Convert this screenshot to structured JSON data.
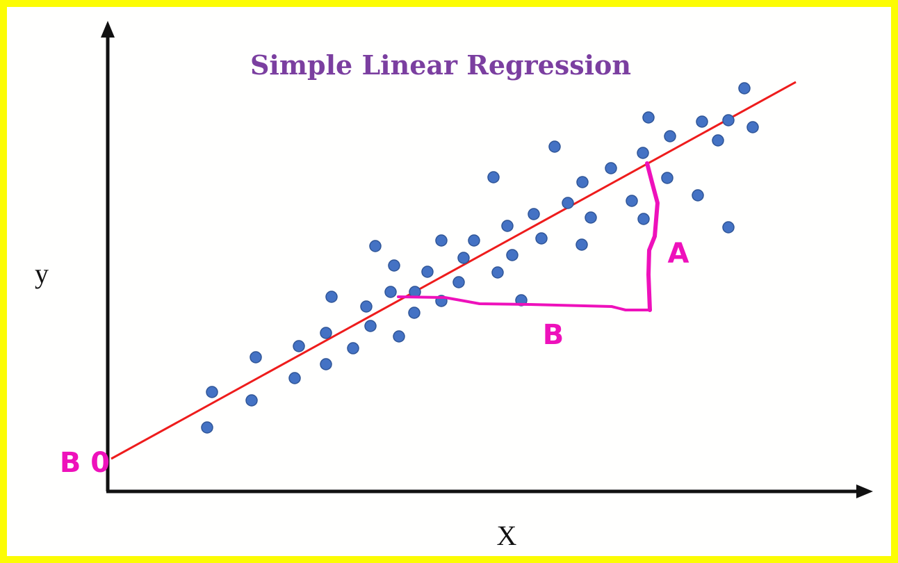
{
  "chart_data": {
    "type": "scatter",
    "title": "Simple Linear Regression",
    "xlabel": "X",
    "ylabel": "y",
    "grid": false,
    "legend": "none",
    "xlim": [
      0,
      1100
    ],
    "ylim": [
      0,
      680
    ],
    "points": [
      [
        143,
        92
      ],
      [
        150,
        143
      ],
      [
        207,
        131
      ],
      [
        213,
        193
      ],
      [
        269,
        163
      ],
      [
        275,
        209
      ],
      [
        314,
        183
      ],
      [
        314,
        228
      ],
      [
        322,
        280
      ],
      [
        353,
        206
      ],
      [
        372,
        266
      ],
      [
        378,
        238
      ],
      [
        385,
        353
      ],
      [
        407,
        287
      ],
      [
        412,
        325
      ],
      [
        419,
        223
      ],
      [
        441,
        257
      ],
      [
        442,
        287
      ],
      [
        460,
        316
      ],
      [
        480,
        274
      ],
      [
        480,
        361
      ],
      [
        505,
        301
      ],
      [
        512,
        336
      ],
      [
        527,
        361
      ],
      [
        555,
        452
      ],
      [
        561,
        315
      ],
      [
        575,
        382
      ],
      [
        582,
        340
      ],
      [
        595,
        275
      ],
      [
        613,
        399
      ],
      [
        624,
        364
      ],
      [
        643,
        496
      ],
      [
        662,
        415
      ],
      [
        682,
        355
      ],
      [
        683,
        445
      ],
      [
        695,
        394
      ],
      [
        724,
        465
      ],
      [
        754,
        418
      ],
      [
        770,
        487
      ],
      [
        778,
        538
      ],
      [
        771,
        392
      ],
      [
        805,
        451
      ],
      [
        809,
        511
      ],
      [
        849,
        426
      ],
      [
        855,
        532
      ],
      [
        878,
        505
      ],
      [
        893,
        380
      ],
      [
        893,
        534
      ],
      [
        916,
        580
      ],
      [
        928,
        524
      ]
    ],
    "regression_line": {
      "x": [
        5,
        990
      ],
      "y": [
        47,
        589
      ]
    },
    "annotations": {
      "intercept_label": "B 0",
      "rise_label": "A",
      "run_label": "B"
    },
    "colors": {
      "points": "#4472c4",
      "line": "#ee1c1c",
      "annotation": "#ee11bb",
      "title": "#7b3fa0",
      "frame": "#fcfc04"
    }
  }
}
